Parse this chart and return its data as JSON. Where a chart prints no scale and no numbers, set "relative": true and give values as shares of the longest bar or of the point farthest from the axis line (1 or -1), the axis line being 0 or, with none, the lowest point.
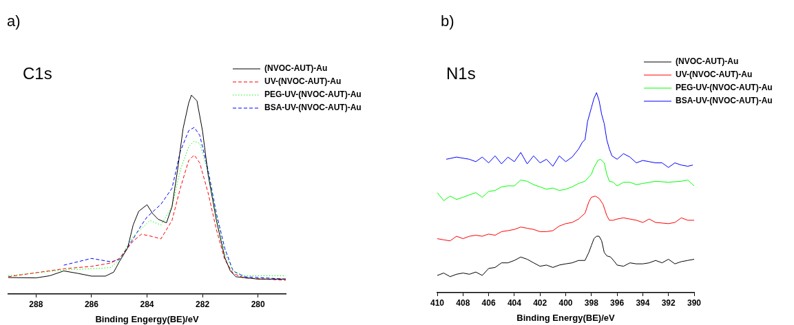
{
  "chart_data": [
    {
      "type": "line",
      "title": "a)",
      "subtitle": "C1s",
      "xlabel": "Binding Engergy(BE)/eV",
      "xlim": [
        289,
        279
      ],
      "xticks": [
        288,
        286,
        284,
        282,
        280
      ],
      "relative": true,
      "grid": false,
      "legend": "top right",
      "marker": "none",
      "series": [
        {
          "name": "(NVOC-AUT)-Au",
          "color": "#000000",
          "line_style": "solid",
          "x": [
            289,
            288,
            287.5,
            287,
            286.5,
            286,
            285.5,
            285.2,
            285,
            284.7,
            284.5,
            284.3,
            284,
            283.8,
            283.6,
            283.3,
            283.1,
            282.9,
            282.7,
            282.5,
            282.4,
            282.2,
            282,
            281.8,
            281.5,
            281.2,
            281,
            280.8,
            280,
            279
          ],
          "values": [
            0.083,
            0.081,
            0.092,
            0.116,
            0.104,
            0.09,
            0.09,
            0.11,
            0.162,
            0.231,
            0.347,
            0.416,
            0.449,
            0.405,
            0.376,
            0.358,
            0.439,
            0.624,
            0.832,
            0.96,
            1.0,
            0.971,
            0.82,
            0.601,
            0.37,
            0.185,
            0.116,
            0.087,
            0.075,
            0.075
          ]
        },
        {
          "name": "UV-(NVOC-AUT)-Au",
          "color": "#ff0000",
          "line_style": "dashed",
          "x": [
            289,
            287,
            286,
            285.3,
            285,
            284.5,
            284.2,
            283.8,
            283.5,
            283.1,
            282.8,
            282.5,
            282.3,
            282.1,
            281.8,
            281.5,
            281.2,
            280.9,
            280.5,
            279
          ],
          "values": [
            0.087,
            0.127,
            0.139,
            0.156,
            0.179,
            0.266,
            0.301,
            0.289,
            0.277,
            0.37,
            0.532,
            0.671,
            0.699,
            0.659,
            0.509,
            0.324,
            0.173,
            0.104,
            0.081,
            0.069
          ]
        },
        {
          "name": "PEG-UV-(NVOC-AUT)-Au",
          "color": "#00ff00",
          "line_style": "dotted",
          "x": [
            289,
            287,
            286,
            285.3,
            285,
            284.5,
            284.2,
            283.9,
            283.5,
            283.1,
            282.8,
            282.5,
            282.3,
            282.1,
            281.8,
            281.5,
            281.2,
            280.9,
            280.5,
            279
          ],
          "values": [
            0.092,
            0.121,
            0.127,
            0.133,
            0.173,
            0.289,
            0.329,
            0.37,
            0.347,
            0.439,
            0.624,
            0.74,
            0.769,
            0.757,
            0.613,
            0.393,
            0.208,
            0.116,
            0.092,
            0.092
          ]
        },
        {
          "name": "BSA-UV-(NVOC-AUT)-Au",
          "color": "#0000ff",
          "line_style": "dashed",
          "x": [
            287,
            286,
            285.3,
            285,
            284.5,
            284.2,
            284,
            283.5,
            283.1,
            282.8,
            282.5,
            282.3,
            282.1,
            281.8,
            281.5,
            281.2,
            280.9,
            280.5,
            279
          ],
          "values": [
            0.145,
            0.179,
            0.162,
            0.173,
            0.277,
            0.347,
            0.387,
            0.451,
            0.532,
            0.717,
            0.821,
            0.838,
            0.798,
            0.624,
            0.405,
            0.231,
            0.116,
            0.087,
            0.075
          ]
        }
      ]
    },
    {
      "type": "line",
      "title": "b)",
      "subtitle": "N1s",
      "xlabel": "Binding Energy(BE)/eV",
      "xlim": [
        410,
        390
      ],
      "xticks": [
        410,
        408,
        406,
        404,
        402,
        400,
        398,
        396,
        394,
        392,
        390
      ],
      "relative": true,
      "grid": false,
      "legend": "top right",
      "marker": "none",
      "series": [
        {
          "name": "(NVOC-AUT)-Au",
          "color": "#000000",
          "line_style": "solid",
          "x": [
            410,
            409.5,
            409,
            408.5,
            408,
            407.5,
            407,
            406.5,
            406,
            405.5,
            405,
            404.5,
            404,
            403.5,
            403,
            402.5,
            402,
            401.5,
            401,
            400.5,
            400,
            399.5,
            399,
            398.5,
            398.2,
            398,
            397.8,
            397.6,
            397.4,
            397.2,
            397,
            396.8,
            396.5,
            396.2,
            396,
            395.5,
            395,
            394.5,
            394,
            393.5,
            393,
            392.5,
            392,
            391.5,
            391,
            390.5,
            390
          ],
          "values": [
            0.086,
            0.098,
            0.08,
            0.092,
            0.098,
            0.092,
            0.103,
            0.086,
            0.121,
            0.126,
            0.149,
            0.149,
            0.161,
            0.178,
            0.167,
            0.149,
            0.132,
            0.138,
            0.126,
            0.138,
            0.144,
            0.149,
            0.161,
            0.161,
            0.201,
            0.236,
            0.27,
            0.282,
            0.282,
            0.259,
            0.201,
            0.184,
            0.178,
            0.155,
            0.138,
            0.132,
            0.149,
            0.144,
            0.144,
            0.149,
            0.161,
            0.149,
            0.167,
            0.144,
            0.155,
            0.161,
            0.167
          ]
        },
        {
          "name": "UV-(NVOC-AUT)-Au",
          "color": "#ff0000",
          "line_style": "solid",
          "x": [
            410,
            409.5,
            409,
            408.5,
            408,
            407.5,
            407,
            406.5,
            406,
            405.5,
            405,
            404.5,
            404,
            403.5,
            403,
            402.5,
            402,
            401.5,
            401,
            400.5,
            400,
            399.5,
            399,
            398.5,
            398.2,
            398,
            397.7,
            397.4,
            397.1,
            396.8,
            396.6,
            396.3,
            396,
            395.5,
            395,
            394.5,
            394,
            393.5,
            393,
            392,
            391.5,
            391,
            390.5,
            390
          ],
          "values": [
            0.27,
            0.264,
            0.259,
            0.282,
            0.27,
            0.282,
            0.287,
            0.282,
            0.293,
            0.287,
            0.305,
            0.31,
            0.316,
            0.328,
            0.322,
            0.316,
            0.305,
            0.305,
            0.31,
            0.333,
            0.345,
            0.351,
            0.368,
            0.397,
            0.454,
            0.477,
            0.483,
            0.471,
            0.443,
            0.385,
            0.362,
            0.362,
            0.368,
            0.374,
            0.368,
            0.362,
            0.351,
            0.368,
            0.351,
            0.345,
            0.351,
            0.374,
            0.362,
            0.362
          ]
        },
        {
          "name": "PEG-UV-(NVOC-AUT)-Au",
          "color": "#00ff00",
          "line_style": "solid",
          "x": [
            410,
            409.5,
            409,
            408.5,
            408,
            407.5,
            407,
            406.5,
            406,
            405.5,
            405,
            404.5,
            404,
            403.5,
            403,
            402.5,
            402,
            401.5,
            401,
            400.5,
            400,
            399.5,
            399,
            398.5,
            398,
            397.8,
            397.5,
            397.3,
            397,
            396.8,
            396.6,
            396.3,
            396,
            395.5,
            395,
            394.5,
            394,
            393,
            392,
            391,
            390.5,
            390
          ],
          "values": [
            0.5,
            0.46,
            0.483,
            0.466,
            0.477,
            0.489,
            0.5,
            0.477,
            0.506,
            0.511,
            0.529,
            0.534,
            0.534,
            0.563,
            0.557,
            0.54,
            0.529,
            0.517,
            0.523,
            0.511,
            0.517,
            0.529,
            0.546,
            0.557,
            0.592,
            0.626,
            0.661,
            0.667,
            0.649,
            0.592,
            0.557,
            0.552,
            0.534,
            0.552,
            0.552,
            0.54,
            0.546,
            0.557,
            0.552,
            0.557,
            0.563,
            0.534
          ]
        },
        {
          "name": "BSA-UV-(NVOC-AUT)-Au",
          "color": "#0000ff",
          "line_style": "solid",
          "x": [
            409.3,
            408.5,
            407.5,
            407,
            406.5,
            406,
            405.5,
            405,
            404.5,
            404,
            403.5,
            403,
            402.5,
            402,
            401.5,
            401,
            400.5,
            400,
            399.5,
            399,
            398.7,
            398.5,
            398.3,
            398,
            397.8,
            397.6,
            397.4,
            397.2,
            397,
            396.8,
            396.6,
            396.4,
            396,
            395.5,
            395,
            394.5,
            394,
            393.5,
            393,
            392.5,
            392,
            391.5,
            391,
            390.5,
            390.1
          ],
          "values": [
            0.667,
            0.678,
            0.667,
            0.655,
            0.678,
            0.649,
            0.684,
            0.644,
            0.678,
            0.655,
            0.701,
            0.644,
            0.684,
            0.649,
            0.667,
            0.632,
            0.684,
            0.655,
            0.678,
            0.718,
            0.753,
            0.764,
            0.856,
            0.925,
            0.971,
            1.0,
            0.96,
            0.891,
            0.845,
            0.764,
            0.718,
            0.684,
            0.667,
            0.695,
            0.678,
            0.649,
            0.661,
            0.655,
            0.649,
            0.649,
            0.626,
            0.649,
            0.638,
            0.632,
            0.638
          ]
        }
      ]
    }
  ]
}
